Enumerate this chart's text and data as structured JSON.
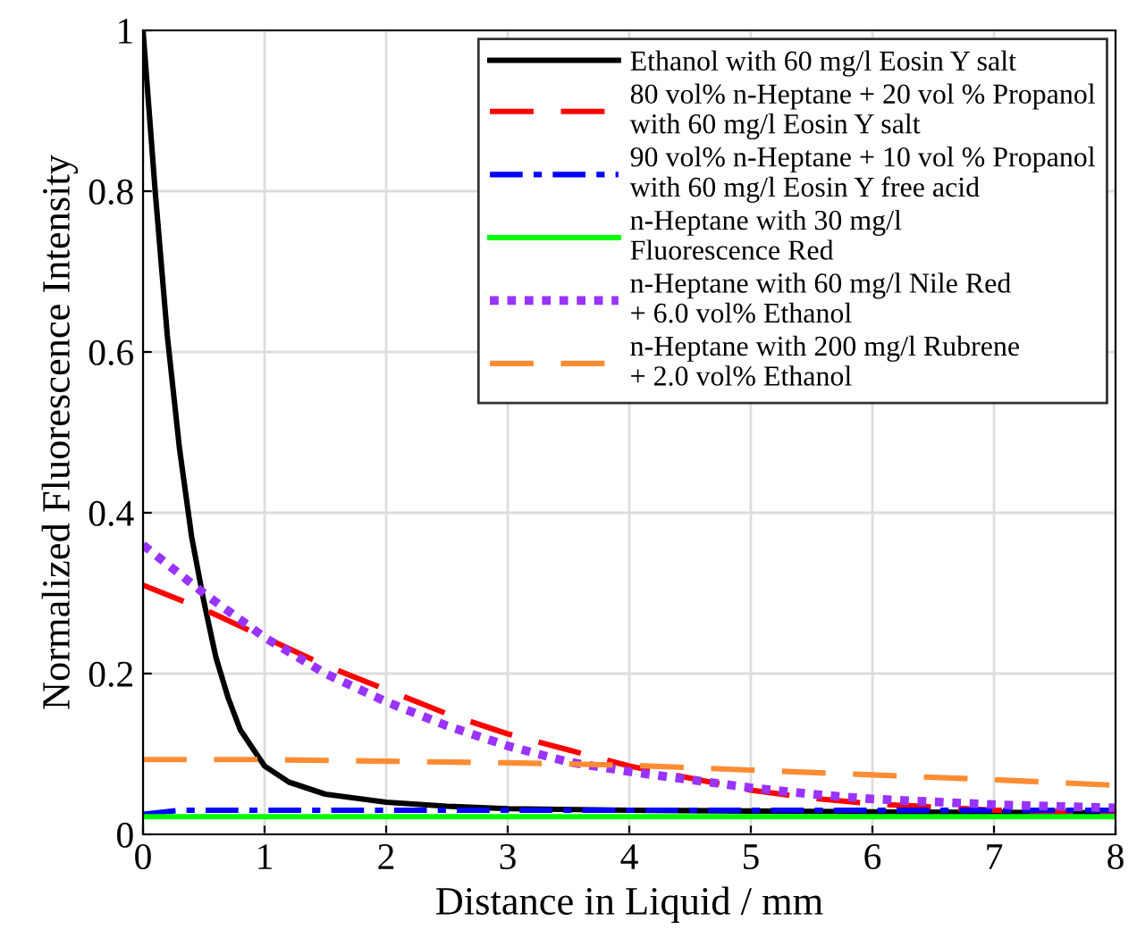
{
  "chart_data": {
    "type": "line",
    "xlabel": "Distance in Liquid / mm",
    "ylabel": "Normalized Fluorescence Intensity",
    "xlim": [
      0,
      8
    ],
    "ylim": [
      0,
      1
    ],
    "xticks": [
      0,
      1,
      2,
      3,
      4,
      5,
      6,
      7,
      8
    ],
    "yticks": [
      0,
      0.2,
      0.4,
      0.6,
      0.8,
      1
    ],
    "grid": true,
    "legend": "top right",
    "marker": "none",
    "series": [
      {
        "name": "Ethanol with 60 mg/l Eosin Y salt",
        "color": "#000000",
        "line_style": "solid",
        "x": [
          0,
          0.1,
          0.2,
          0.3,
          0.4,
          0.5,
          0.6,
          0.7,
          0.8,
          1.0,
          1.2,
          1.5,
          2,
          2.5,
          3,
          4,
          5,
          6,
          8
        ],
        "values": [
          1.0,
          0.8,
          0.62,
          0.48,
          0.37,
          0.29,
          0.22,
          0.17,
          0.13,
          0.085,
          0.065,
          0.05,
          0.04,
          0.035,
          0.032,
          0.03,
          0.029,
          0.028,
          0.027
        ]
      },
      {
        "name": "80 vol% n-Heptane + 20 vol % Propanol\nwith 60 mg/l Eosin Y salt",
        "color": "#ff0000",
        "line_style": "dashed",
        "x": [
          0,
          0.5,
          1,
          1.5,
          2,
          2.5,
          3,
          3.5,
          4,
          4.5,
          5,
          5.5,
          6,
          7,
          8
        ],
        "values": [
          0.31,
          0.28,
          0.245,
          0.21,
          0.18,
          0.15,
          0.125,
          0.105,
          0.085,
          0.07,
          0.055,
          0.045,
          0.038,
          0.03,
          0.027
        ]
      },
      {
        "name": "90 vol% n-Heptane + 10 vol % Propanol\nwith 60 mg/l Eosin Y free acid",
        "color": "#0000ff",
        "line_style": "dashdot",
        "x": [
          0,
          0.3,
          1,
          8
        ],
        "values": [
          0.025,
          0.03,
          0.03,
          0.03
        ]
      },
      {
        "name": "n-Heptane with 30 mg/l\nFluorescence Red",
        "color": "#00ff00",
        "line_style": "solid",
        "x": [
          0,
          8
        ],
        "values": [
          0.022,
          0.022
        ]
      },
      {
        "name": "n-Heptane with 60 mg/l Nile Red\n+ 6.0 vol% Ethanol",
        "color": "#9933ff",
        "line_style": "dotted",
        "x": [
          0,
          0.25,
          0.5,
          1,
          1.5,
          2,
          2.5,
          3,
          3.5,
          4,
          4.5,
          5,
          5.5,
          6,
          7,
          8
        ],
        "values": [
          0.36,
          0.33,
          0.3,
          0.245,
          0.2,
          0.165,
          0.135,
          0.11,
          0.09,
          0.078,
          0.068,
          0.058,
          0.05,
          0.044,
          0.037,
          0.033
        ]
      },
      {
        "name": "n-Heptane with 200 mg/l Rubrene\n+ 2.0 vol% Ethanol",
        "color": "#ff8c33",
        "line_style": "dashed",
        "x": [
          0,
          1,
          2,
          3,
          4,
          5,
          6,
          7,
          8
        ],
        "values": [
          0.093,
          0.093,
          0.091,
          0.089,
          0.086,
          0.08,
          0.074,
          0.068,
          0.061
        ]
      }
    ]
  }
}
